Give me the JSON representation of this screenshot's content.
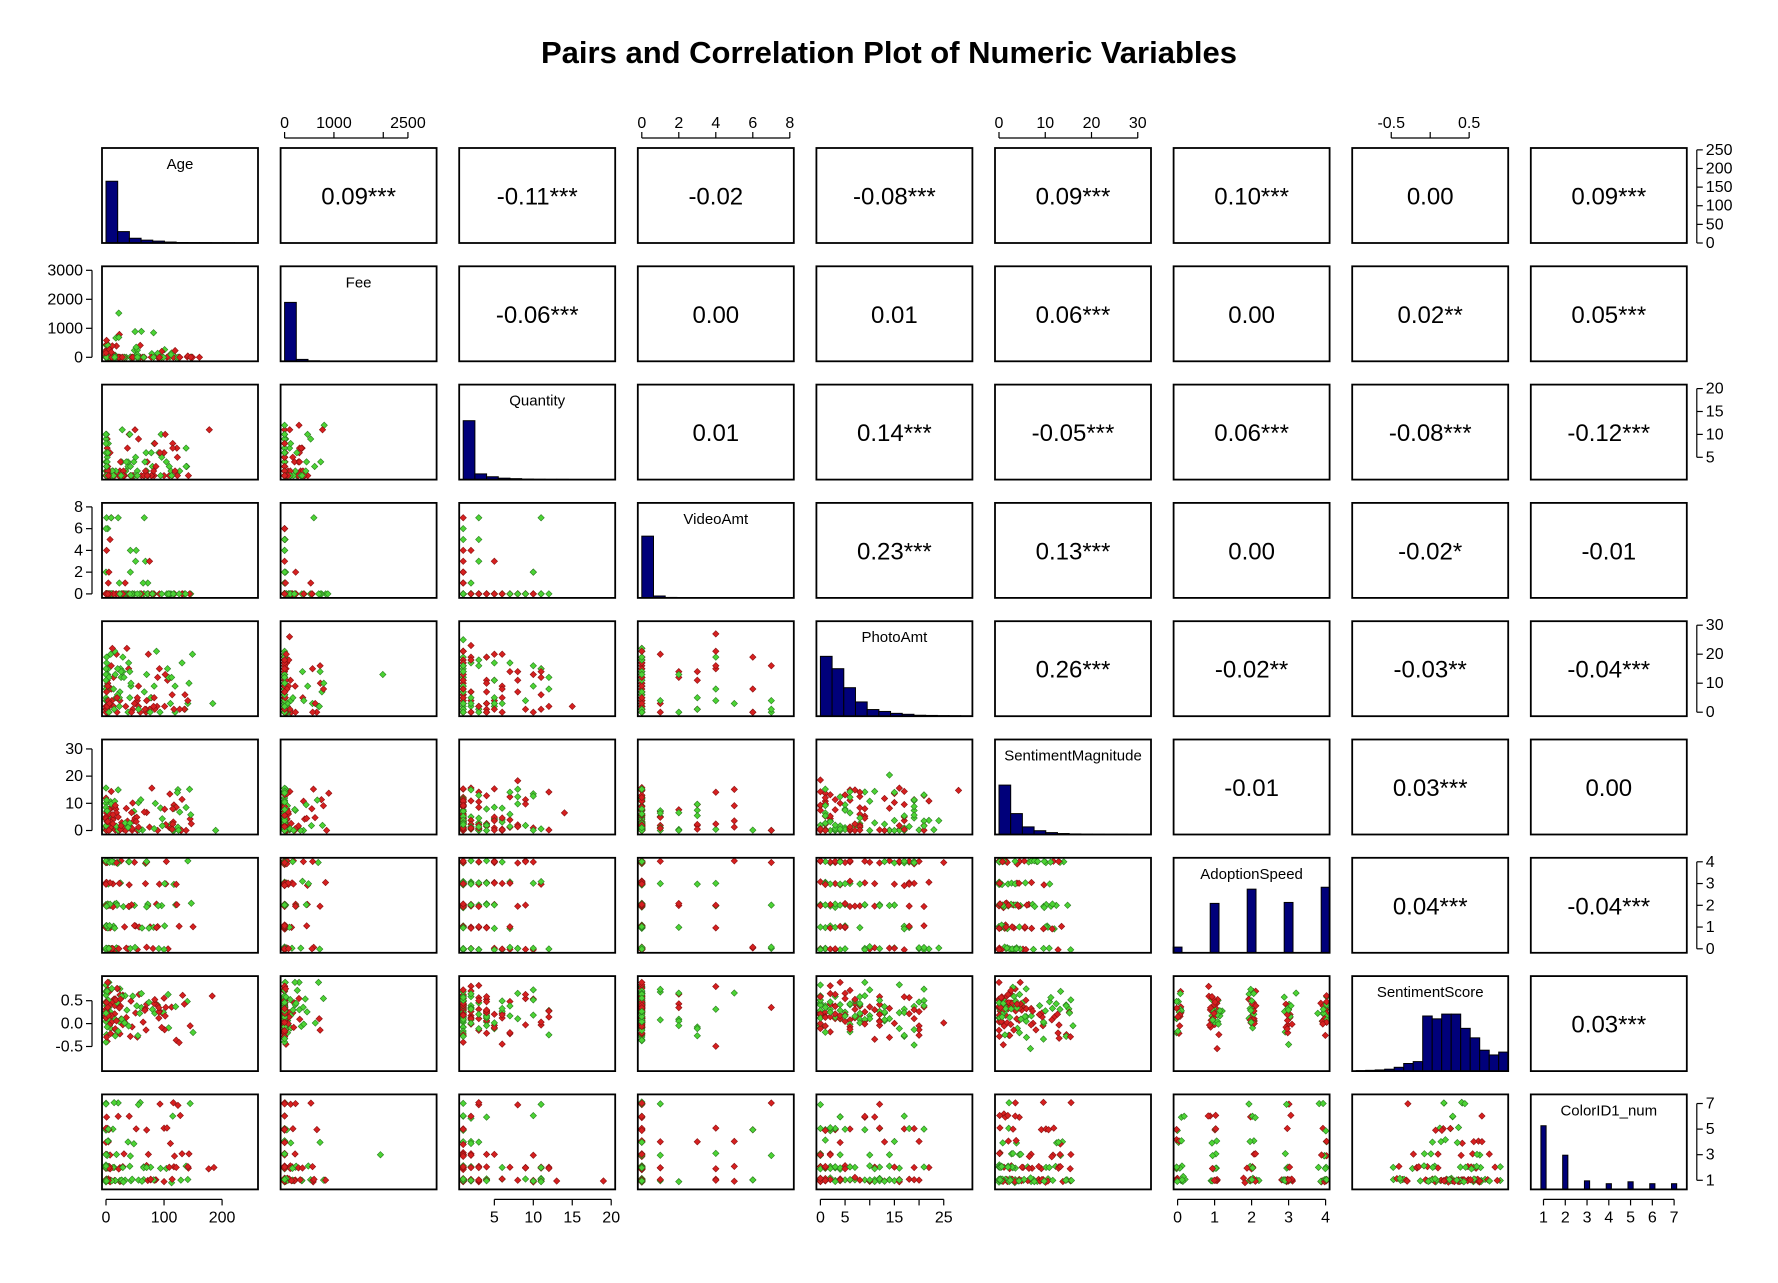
{
  "title": "Pairs and Correlation Plot of Numeric Variables",
  "colors": {
    "hist_fill": "#00007A",
    "point_red": "#D62020",
    "point_green": "#4CD435",
    "point_outline": "#333333",
    "frame": "#000000"
  },
  "chart_data": {
    "type": "scatter",
    "title": "Pairs and Correlation Plot of Numeric Variables",
    "variables": [
      {
        "name": "Age",
        "range": [
          0,
          255
        ],
        "ticks": [
          {
            "v": 0,
            "label": "0"
          },
          {
            "v": 100,
            "label": "100"
          },
          {
            "v": 200,
            "label": "200"
          }
        ],
        "hist": [
          0.65,
          0.12,
          0.05,
          0.03,
          0.02,
          0.01,
          0.005,
          0.004,
          0.003,
          0.002,
          0.002,
          0.001,
          0.001
        ],
        "hist_count_ticks": [
          "0",
          "50",
          "100",
          "150",
          "200",
          "250"
        ],
        "hist_count_max": 255
      },
      {
        "name": "Fee",
        "range": [
          0,
          3000
        ],
        "ticks": [
          {
            "v": 0,
            "label": "0"
          },
          {
            "v": 1000,
            "label": "1000"
          },
          {
            "v": 2000,
            "label": "2000"
          },
          {
            "v": 2500,
            "label": "2500"
          },
          {
            "v": 3000,
            "label": "3000"
          }
        ],
        "hist": [
          0.62,
          0.02,
          0.005,
          0.003,
          0.002,
          0.001,
          0.001,
          0.001,
          0.0,
          0.0,
          0.0,
          0.0,
          0.001
        ]
      },
      {
        "name": "Quantity",
        "range": [
          1,
          20
        ],
        "ticks": [
          {
            "v": 5,
            "label": "5"
          },
          {
            "v": 10,
            "label": "10"
          },
          {
            "v": 15,
            "label": "15"
          },
          {
            "v": 20,
            "label": "20"
          }
        ],
        "hist": [
          0.62,
          0.06,
          0.03,
          0.015,
          0.01,
          0.005,
          0.003,
          0.002,
          0.002,
          0.001,
          0.001,
          0.001,
          0.001
        ]
      },
      {
        "name": "VideoAmt",
        "range": [
          0,
          8
        ],
        "ticks": [
          {
            "v": 0,
            "label": "0"
          },
          {
            "v": 2,
            "label": "2"
          },
          {
            "v": 4,
            "label": "4"
          },
          {
            "v": 6,
            "label": "6"
          },
          {
            "v": 8,
            "label": "8"
          }
        ],
        "hist": [
          0.65,
          0.02,
          0.005,
          0.002,
          0.001,
          0.001,
          0.0,
          0.0,
          0.001,
          0.0,
          0.0,
          0.0,
          0.0
        ]
      },
      {
        "name": "PhotoAmt",
        "range": [
          0,
          30
        ],
        "ticks": [
          {
            "v": 0,
            "label": "0"
          },
          {
            "v": 5,
            "label": "5"
          },
          {
            "v": 10,
            "label": "10"
          },
          {
            "v": 15,
            "label": "15"
          },
          {
            "v": 20,
            "label": "20"
          },
          {
            "v": 25,
            "label": "25"
          },
          {
            "v": 30,
            "label": "30"
          }
        ],
        "hist": [
          0.63,
          0.5,
          0.3,
          0.15,
          0.07,
          0.05,
          0.03,
          0.02,
          0.01,
          0.008,
          0.006,
          0.005,
          0.004
        ]
      },
      {
        "name": "SentimentMagnitude",
        "range": [
          0,
          32
        ],
        "ticks": [
          {
            "v": 0,
            "label": "0"
          },
          {
            "v": 10,
            "label": "10"
          },
          {
            "v": 20,
            "label": "20"
          },
          {
            "v": 30,
            "label": "30"
          }
        ],
        "hist": [
          0.52,
          0.22,
          0.08,
          0.04,
          0.02,
          0.01,
          0.006,
          0.003,
          0.002,
          0.001,
          0.001,
          0.0,
          0.0
        ]
      },
      {
        "name": "AdoptionSpeed",
        "range": [
          0,
          4
        ],
        "ticks": [
          {
            "v": 0,
            "label": "0"
          },
          {
            "v": 1,
            "label": "1"
          },
          {
            "v": 2,
            "label": "2"
          },
          {
            "v": 3,
            "label": "3"
          },
          {
            "v": 4,
            "label": "4"
          }
        ],
        "hist_discrete": [
          {
            "v": 0,
            "h": 0.06
          },
          {
            "v": 1,
            "h": 0.52
          },
          {
            "v": 2,
            "h": 0.67
          },
          {
            "v": 3,
            "h": 0.53
          },
          {
            "v": 4,
            "h": 0.69
          }
        ]
      },
      {
        "name": "SentimentScore",
        "range": [
          -0.95,
          0.95
        ],
        "ticks": [
          {
            "v": -0.5,
            "label": "-0.5"
          },
          {
            "v": 0.0,
            "label": "0.0"
          },
          {
            "v": 0.5,
            "label": "0.5"
          }
        ],
        "hist": [
          0.005,
          0.008,
          0.012,
          0.02,
          0.04,
          0.08,
          0.1,
          0.58,
          0.55,
          0.6,
          0.6,
          0.45,
          0.35,
          0.22,
          0.17,
          0.2
        ]
      },
      {
        "name": "ColorID1_num",
        "range": [
          0.6,
          7.4
        ],
        "ticks": [
          {
            "v": 1,
            "label": "1"
          },
          {
            "v": 2,
            "label": "2"
          },
          {
            "v": 3,
            "label": "3"
          },
          {
            "v": 4,
            "label": "4"
          },
          {
            "v": 5,
            "label": "5"
          },
          {
            "v": 6,
            "label": "6"
          },
          {
            "v": 7,
            "label": "7"
          }
        ],
        "hist_discrete": [
          {
            "v": 1,
            "h": 0.67
          },
          {
            "v": 2,
            "h": 0.36
          },
          {
            "v": 3,
            "h": 0.09
          },
          {
            "v": 4,
            "h": 0.06
          },
          {
            "v": 5,
            "h": 0.08
          },
          {
            "v": 6,
            "h": 0.06
          },
          {
            "v": 7,
            "h": 0.06
          }
        ]
      }
    ],
    "correlations": [
      {
        "row": 1,
        "col": 2,
        "text": "0.09***"
      },
      {
        "row": 1,
        "col": 3,
        "text": "-0.11***"
      },
      {
        "row": 1,
        "col": 4,
        "text": "-0.02"
      },
      {
        "row": 1,
        "col": 5,
        "text": "-0.08***"
      },
      {
        "row": 1,
        "col": 6,
        "text": "0.09***"
      },
      {
        "row": 1,
        "col": 7,
        "text": "0.10***"
      },
      {
        "row": 1,
        "col": 8,
        "text": "0.00"
      },
      {
        "row": 1,
        "col": 9,
        "text": "0.09***"
      },
      {
        "row": 2,
        "col": 3,
        "text": "-0.06***"
      },
      {
        "row": 2,
        "col": 4,
        "text": "0.00"
      },
      {
        "row": 2,
        "col": 5,
        "text": "0.01"
      },
      {
        "row": 2,
        "col": 6,
        "text": "0.06***"
      },
      {
        "row": 2,
        "col": 7,
        "text": "0.00"
      },
      {
        "row": 2,
        "col": 8,
        "text": "0.02**"
      },
      {
        "row": 2,
        "col": 9,
        "text": "0.05***"
      },
      {
        "row": 3,
        "col": 4,
        "text": "0.01"
      },
      {
        "row": 3,
        "col": 5,
        "text": "0.14***"
      },
      {
        "row": 3,
        "col": 6,
        "text": "-0.05***"
      },
      {
        "row": 3,
        "col": 7,
        "text": "0.06***"
      },
      {
        "row": 3,
        "col": 8,
        "text": "-0.08***"
      },
      {
        "row": 3,
        "col": 9,
        "text": "-0.12***"
      },
      {
        "row": 4,
        "col": 5,
        "text": "0.23***"
      },
      {
        "row": 4,
        "col": 6,
        "text": "0.13***"
      },
      {
        "row": 4,
        "col": 7,
        "text": "0.00"
      },
      {
        "row": 4,
        "col": 8,
        "text": "-0.02*"
      },
      {
        "row": 4,
        "col": 9,
        "text": "-0.01"
      },
      {
        "row": 5,
        "col": 6,
        "text": "0.26***"
      },
      {
        "row": 5,
        "col": 7,
        "text": "-0.02**"
      },
      {
        "row": 5,
        "col": 8,
        "text": "-0.03**"
      },
      {
        "row": 5,
        "col": 9,
        "text": "-0.04***"
      },
      {
        "row": 6,
        "col": 7,
        "text": "-0.01"
      },
      {
        "row": 6,
        "col": 8,
        "text": "0.03***"
      },
      {
        "row": 6,
        "col": 9,
        "text": "0.00"
      },
      {
        "row": 7,
        "col": 8,
        "text": "0.04***"
      },
      {
        "row": 7,
        "col": 9,
        "text": "-0.04***"
      },
      {
        "row": 8,
        "col": 9,
        "text": "0.03***"
      }
    ],
    "axes": {
      "top": [
        {
          "col": 2,
          "labels": [
            {
              "v": 0,
              "label": "0"
            },
            {
              "v": 1000,
              "label": "1000"
            },
            {
              "v": 2500,
              "label": "2500"
            }
          ],
          "minor": [
            2000
          ]
        },
        {
          "col": 4,
          "labels": [
            {
              "v": 0,
              "label": "0"
            },
            {
              "v": 2,
              "label": "2"
            },
            {
              "v": 4,
              "label": "4"
            },
            {
              "v": 6,
              "label": "6"
            },
            {
              "v": 8,
              "label": "8"
            }
          ],
          "minor": []
        },
        {
          "col": 6,
          "labels": [
            {
              "v": 0,
              "label": "0"
            },
            {
              "v": 10,
              "label": "10"
            },
            {
              "v": 20,
              "label": "20"
            },
            {
              "v": 30,
              "label": "30"
            }
          ],
          "minor": []
        },
        {
          "col": 8,
          "labels": [
            {
              "v": -0.5,
              "label": "-0.5"
            },
            {
              "v": 0.5,
              "label": "0.5"
            }
          ],
          "minor": [
            0.0
          ]
        }
      ],
      "bottom": [
        {
          "col": 1,
          "labels": [
            {
              "v": 0,
              "label": "0"
            },
            {
              "v": 100,
              "label": "100"
            },
            {
              "v": 200,
              "label": "200"
            }
          ],
          "minor": []
        },
        {
          "col": 3,
          "labels": [
            {
              "v": 5,
              "label": "5"
            },
            {
              "v": 10,
              "label": "10"
            },
            {
              "v": 15,
              "label": "15"
            },
            {
              "v": 20,
              "label": "20"
            }
          ],
          "minor": []
        },
        {
          "col": 5,
          "labels": [
            {
              "v": 0,
              "label": "0"
            },
            {
              "v": 5,
              "label": "5"
            },
            {
              "v": 15,
              "label": "15"
            },
            {
              "v": 25,
              "label": "25"
            }
          ],
          "minor": [
            10,
            20
          ]
        },
        {
          "col": 7,
          "labels": [
            {
              "v": 0,
              "label": "0"
            },
            {
              "v": 1,
              "label": "1"
            },
            {
              "v": 2,
              "label": "2"
            },
            {
              "v": 3,
              "label": "3"
            },
            {
              "v": 4,
              "label": "4"
            }
          ],
          "minor": []
        },
        {
          "col": 9,
          "labels": [
            {
              "v": 1,
              "label": "1"
            },
            {
              "v": 2,
              "label": "2"
            },
            {
              "v": 3,
              "label": "3"
            },
            {
              "v": 4,
              "label": "4"
            },
            {
              "v": 5,
              "label": "5"
            },
            {
              "v": 6,
              "label": "6"
            },
            {
              "v": 7,
              "label": "7"
            }
          ],
          "minor": []
        }
      ],
      "left": [
        {
          "row": 2,
          "labels": [
            {
              "v": 0,
              "label": "0"
            },
            {
              "v": 1000,
              "label": "1000"
            },
            {
              "v": 2000,
              "label": "2000"
            },
            {
              "v": 3000,
              "label": "3000"
            }
          ],
          "minor": []
        },
        {
          "row": 4,
          "labels": [
            {
              "v": 0,
              "label": "0"
            },
            {
              "v": 2,
              "label": "2"
            },
            {
              "v": 4,
              "label": "4"
            },
            {
              "v": 6,
              "label": "6"
            },
            {
              "v": 8,
              "label": "8"
            }
          ],
          "minor": []
        },
        {
          "row": 6,
          "labels": [
            {
              "v": 0,
              "label": "0"
            },
            {
              "v": 10,
              "label": "10"
            },
            {
              "v": 20,
              "label": "20"
            },
            {
              "v": 30,
              "label": "30"
            }
          ],
          "minor": []
        },
        {
          "row": 8,
          "labels": [
            {
              "v": -0.5,
              "label": "-0.5"
            },
            {
              "v": 0.0,
              "label": "0.0"
            },
            {
              "v": 0.5,
              "label": "0.5"
            }
          ],
          "minor": []
        }
      ],
      "right": [
        {
          "row": 1,
          "hist_counts": true,
          "labels": [
            {
              "v": 0,
              "label": "0"
            },
            {
              "v": 50,
              "label": "50"
            },
            {
              "v": 100,
              "label": "100"
            },
            {
              "v": 150,
              "label": "150"
            },
            {
              "v": 200,
              "label": "200"
            },
            {
              "v": 250,
              "label": "250"
            }
          ],
          "minor": []
        },
        {
          "row": 3,
          "labels": [
            {
              "v": 5,
              "label": "5"
            },
            {
              "v": 10,
              "label": "10"
            },
            {
              "v": 15,
              "label": "15"
            },
            {
              "v": 20,
              "label": "20"
            }
          ],
          "minor": []
        },
        {
          "row": 5,
          "labels": [
            {
              "v": 0,
              "label": "0"
            },
            {
              "v": 10,
              "label": "10"
            },
            {
              "v": 20,
              "label": "20"
            },
            {
              "v": 30,
              "label": "30"
            }
          ],
          "minor": []
        },
        {
          "row": 7,
          "labels": [
            {
              "v": 0,
              "label": "0"
            },
            {
              "v": 1,
              "label": "1"
            },
            {
              "v": 2,
              "label": "2"
            },
            {
              "v": 3,
              "label": "3"
            },
            {
              "v": 4,
              "label": "4"
            }
          ],
          "minor": []
        },
        {
          "row": 9,
          "labels": [
            {
              "v": 1,
              "label": "1"
            },
            {
              "v": 3,
              "label": "3"
            },
            {
              "v": 5,
              "label": "5"
            },
            {
              "v": 7,
              "label": "7"
            }
          ],
          "minor": []
        }
      ]
    },
    "point_groups": [
      "red",
      "green"
    ],
    "grid": false,
    "legend": "none"
  }
}
